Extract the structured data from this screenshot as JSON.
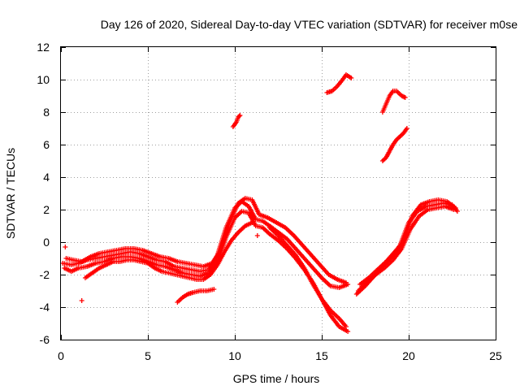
{
  "chart_data": {
    "type": "scatter",
    "title": "Day 126 of 2020, Sidereal Day-to-day VTEC variation (SDTVAR) for receiver m0se",
    "xlabel": "GPS time / hours",
    "ylabel": "SDTVAR / TECUs",
    "xlim": [
      0,
      25
    ],
    "ylim": [
      -6,
      12
    ],
    "xticks": [
      0,
      5,
      10,
      15,
      20,
      25
    ],
    "yticks": [
      -6,
      -4,
      -2,
      0,
      2,
      4,
      6,
      8,
      10,
      12
    ],
    "x_tick_labels": [
      "0",
      "5",
      "10",
      "15",
      "20",
      "25"
    ],
    "y_tick_labels": [
      "-6",
      "-4",
      "-2",
      "0",
      "2",
      "4",
      "6",
      "8",
      "10",
      "12"
    ],
    "grid": true,
    "legend": "none",
    "marker": "+",
    "marker_color": "#ff0000",
    "series": [
      {
        "name": "main-band-a",
        "x": [
          0.1,
          0.6,
          1.0,
          1.5,
          2.0,
          2.5,
          3.0,
          3.5,
          4.0,
          4.5,
          5.0,
          5.5,
          6.0,
          6.5,
          7.0,
          7.5,
          8.0,
          8.5,
          9.0,
          9.5,
          10.0,
          10.4,
          10.8,
          11.2,
          11.6,
          12.0,
          12.5,
          13.0,
          13.5,
          14.0,
          14.5,
          15.0,
          15.5,
          16.0,
          16.5
        ],
        "y": [
          -1.3,
          -1.4,
          -1.3,
          -1.1,
          -1.0,
          -0.9,
          -0.8,
          -0.7,
          -0.6,
          -0.7,
          -0.9,
          -1.1,
          -1.2,
          -1.5,
          -1.6,
          -1.7,
          -1.8,
          -1.7,
          -0.8,
          0.9,
          2.1,
          2.5,
          2.2,
          1.4,
          1.3,
          1.0,
          0.6,
          0.2,
          -0.4,
          -1.0,
          -1.6,
          -2.2,
          -2.7,
          -2.8,
          -2.6
        ]
      },
      {
        "name": "main-band-b",
        "x": [
          0.2,
          0.6,
          1.0,
          1.5,
          2.0,
          2.5,
          3.0,
          3.5,
          4.0,
          4.5,
          5.0,
          5.5,
          6.0,
          6.5,
          7.0,
          7.5,
          8.0,
          8.5,
          9.0,
          9.5,
          10.0,
          10.4,
          10.8,
          11.2,
          11.6,
          12.0,
          12.5,
          13.0,
          13.5,
          14.0,
          14.5,
          15.0,
          15.5,
          16.0,
          16.5
        ],
        "y": [
          -1.6,
          -1.8,
          -1.6,
          -1.5,
          -1.3,
          -1.2,
          -1.0,
          -0.9,
          -0.9,
          -1.0,
          -1.2,
          -1.4,
          -1.5,
          -1.7,
          -1.9,
          -2.0,
          -2.1,
          -1.9,
          -1.2,
          0.3,
          1.5,
          1.9,
          1.8,
          1.0,
          0.9,
          0.5,
          0.1,
          -0.4,
          -1.0,
          -1.7,
          -2.5,
          -3.5,
          -4.5,
          -5.2,
          -5.5
        ]
      },
      {
        "name": "main-band-c",
        "x": [
          0.3,
          0.7,
          1.2,
          1.7,
          2.2,
          2.7,
          3.2,
          3.7,
          4.2,
          4.7,
          5.2,
          5.7,
          6.2,
          6.7,
          7.2,
          7.7,
          8.2,
          8.7,
          9.2,
          9.7,
          10.2,
          10.6,
          11.0,
          11.4,
          11.9,
          12.4,
          12.9,
          13.4,
          13.9,
          14.4,
          14.9,
          15.4,
          15.9,
          16.4
        ],
        "y": [
          -1.0,
          -1.1,
          -1.2,
          -0.9,
          -0.7,
          -0.6,
          -0.5,
          -0.4,
          -0.4,
          -0.5,
          -0.7,
          -0.9,
          -1.0,
          -1.2,
          -1.3,
          -1.4,
          -1.5,
          -1.3,
          -0.5,
          1.2,
          2.4,
          2.7,
          2.6,
          1.7,
          1.5,
          1.2,
          0.9,
          0.4,
          -0.2,
          -0.8,
          -1.4,
          -2.0,
          -2.3,
          -2.5
        ]
      },
      {
        "name": "main-band-d",
        "x": [
          1.4,
          1.8,
          2.2,
          2.6,
          3.0,
          3.4,
          3.8,
          4.2,
          4.6,
          5.0,
          5.4,
          5.8,
          6.2,
          6.6,
          7.0,
          7.4,
          7.8,
          8.2,
          8.6,
          9.0,
          9.4,
          9.8,
          10.2,
          10.6,
          11.0
        ],
        "y": [
          -2.2,
          -1.9,
          -1.6,
          -1.4,
          -1.2,
          -1.2,
          -1.1,
          -1.1,
          -1.2,
          -1.3,
          -1.6,
          -1.8,
          -1.9,
          -2.0,
          -2.1,
          -2.2,
          -2.3,
          -2.3,
          -2.0,
          -1.4,
          -0.6,
          0.1,
          0.6,
          1.0,
          1.2
        ]
      },
      {
        "name": "dip-band",
        "x": [
          6.7,
          7.0,
          7.3,
          7.6,
          8.0,
          8.4,
          8.8
        ],
        "y": [
          -3.7,
          -3.4,
          -3.2,
          -3.1,
          -3.0,
          -3.0,
          -2.9
        ]
      },
      {
        "name": "descent-band",
        "x": [
          12.0,
          12.5,
          13.0,
          13.5,
          14.0,
          14.5,
          15.0,
          15.5,
          16.0,
          16.4
        ],
        "y": [
          0.9,
          0.4,
          -0.2,
          -0.8,
          -1.6,
          -2.6,
          -3.5,
          -4.2,
          -4.7,
          -5.2
        ]
      },
      {
        "name": "isolated-points",
        "x": [
          0.25,
          1.2,
          11.3
        ],
        "y": [
          -0.3,
          -3.6,
          0.4
        ]
      },
      {
        "name": "recovery-band-a",
        "x": [
          17.0,
          17.5,
          18.0,
          18.5,
          19.0,
          19.5,
          20.0,
          20.5,
          21.0,
          21.5,
          22.0,
          22.5,
          22.8
        ],
        "y": [
          -3.2,
          -2.7,
          -2.1,
          -1.5,
          -0.9,
          -0.2,
          1.2,
          1.9,
          2.2,
          2.3,
          2.4,
          2.3,
          1.9
        ]
      },
      {
        "name": "recovery-band-b",
        "x": [
          17.2,
          17.7,
          18.2,
          18.7,
          19.2,
          19.7,
          20.2,
          20.7,
          21.2,
          21.7,
          22.2,
          22.7
        ],
        "y": [
          -2.6,
          -2.2,
          -1.7,
          -1.2,
          -0.6,
          0.0,
          1.6,
          2.3,
          2.5,
          2.6,
          2.5,
          2.1
        ]
      },
      {
        "name": "recovery-band-c",
        "x": [
          17.1,
          17.6,
          18.1,
          18.6,
          19.1,
          19.6,
          20.1,
          20.6,
          21.1,
          21.6,
          22.1,
          22.6
        ],
        "y": [
          -3.0,
          -2.5,
          -2.0,
          -1.6,
          -1.1,
          -0.4,
          0.8,
          1.6,
          2.0,
          2.1,
          2.2,
          2.0
        ]
      },
      {
        "name": "high-patch-10h",
        "x": [
          9.9,
          10.1,
          10.2,
          10.3
        ],
        "y": [
          7.1,
          7.4,
          7.7,
          7.8
        ]
      },
      {
        "name": "high-patch-15h",
        "x": [
          15.3,
          15.6,
          15.9,
          16.2,
          16.4,
          16.7
        ],
        "y": [
          9.2,
          9.3,
          9.6,
          10.0,
          10.3,
          10.1
        ]
      },
      {
        "name": "high-patch-19h-upper",
        "x": [
          18.5,
          18.7,
          18.9,
          19.1,
          19.3,
          19.6,
          19.8
        ],
        "y": [
          8.0,
          8.5,
          9.0,
          9.3,
          9.3,
          9.0,
          8.9
        ]
      },
      {
        "name": "high-patch-19h-lower",
        "x": [
          18.5,
          18.7,
          18.9,
          19.1,
          19.3,
          19.5,
          19.7,
          19.9
        ],
        "y": [
          5.0,
          5.2,
          5.6,
          6.0,
          6.3,
          6.5,
          6.7,
          7.0
        ]
      }
    ]
  }
}
